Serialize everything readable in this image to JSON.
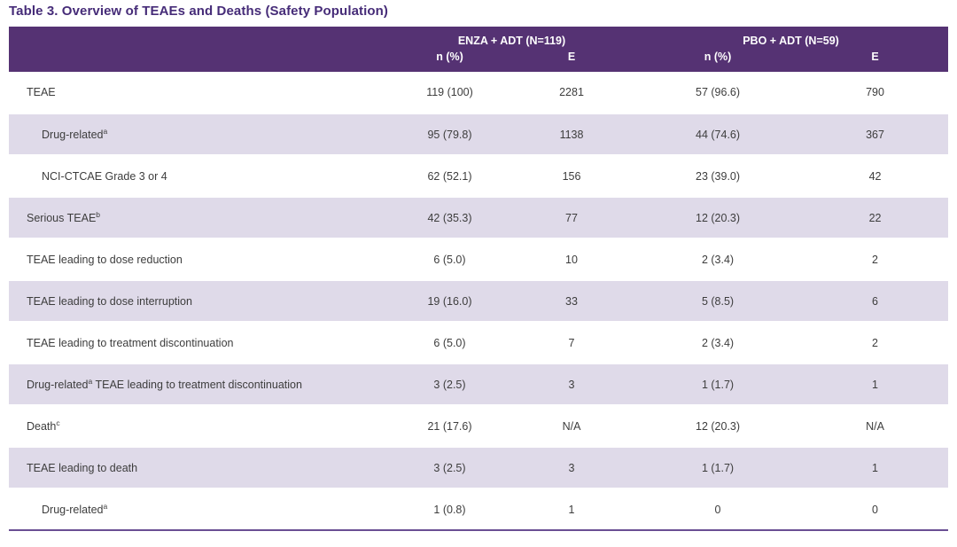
{
  "page_title": "Table 3. Overview of TEAEs and Deaths (Safety Population)",
  "colors": {
    "title_text": "#462c78",
    "header_bg": "#553273",
    "header_text": "#ffffff",
    "shaded_row_bg": "#dfdae9",
    "body_text": "#3d3d3d",
    "bottom_rule": "#6a4f93"
  },
  "table": {
    "column_groups": [
      {
        "label": "ENZA + ADT (N=119)"
      },
      {
        "label": "PBO + ADT (N=59)"
      }
    ],
    "sub_headers": [
      "n (%)",
      "E",
      "n (%)",
      "E"
    ],
    "rows": [
      {
        "label_parts": [
          {
            "text": "TEAE"
          }
        ],
        "indent": 0,
        "values": [
          "119 (100)",
          "2281",
          "57 (96.6)",
          "790"
        ]
      },
      {
        "label_parts": [
          {
            "text": "Drug-related"
          },
          {
            "sup": "a"
          }
        ],
        "indent": 1,
        "values": [
          "95 (79.8)",
          "1138",
          "44 (74.6)",
          "367"
        ]
      },
      {
        "label_parts": [
          {
            "text": "NCI-CTCAE Grade 3 or 4"
          }
        ],
        "indent": 1,
        "values": [
          "62 (52.1)",
          "156",
          "23 (39.0)",
          "42"
        ]
      },
      {
        "label_parts": [
          {
            "text": "Serious TEAE"
          },
          {
            "sup": "b"
          }
        ],
        "indent": 0,
        "values": [
          "42 (35.3)",
          "77",
          "12 (20.3)",
          "22"
        ]
      },
      {
        "label_parts": [
          {
            "text": "TEAE leading to dose reduction"
          }
        ],
        "indent": 0,
        "values": [
          "6 (5.0)",
          "10",
          "2 (3.4)",
          "2"
        ]
      },
      {
        "label_parts": [
          {
            "text": "TEAE leading to dose interruption"
          }
        ],
        "indent": 0,
        "values": [
          "19 (16.0)",
          "33",
          "5 (8.5)",
          "6"
        ]
      },
      {
        "label_parts": [
          {
            "text": "TEAE leading to treatment discontinuation"
          }
        ],
        "indent": 0,
        "values": [
          "6 (5.0)",
          "7",
          "2 (3.4)",
          "2"
        ]
      },
      {
        "label_parts": [
          {
            "text": "Drug-related"
          },
          {
            "sup": "a"
          },
          {
            "text": " TEAE leading to treatment discontinuation"
          }
        ],
        "indent": 0,
        "values": [
          "3 (2.5)",
          "3",
          "1 (1.7)",
          "1"
        ]
      },
      {
        "label_parts": [
          {
            "text": "Death"
          },
          {
            "sup": "c"
          }
        ],
        "indent": 0,
        "values": [
          "21 (17.6)",
          "N/A",
          "12 (20.3)",
          "N/A"
        ]
      },
      {
        "label_parts": [
          {
            "text": "TEAE leading to death"
          }
        ],
        "indent": 0,
        "values": [
          "3 (2.5)",
          "3",
          "1 (1.7)",
          "1"
        ]
      },
      {
        "label_parts": [
          {
            "text": "Drug-related"
          },
          {
            "sup": "a"
          }
        ],
        "indent": 1,
        "values": [
          "1 (0.8)",
          "1",
          "0",
          "0"
        ]
      }
    ]
  }
}
